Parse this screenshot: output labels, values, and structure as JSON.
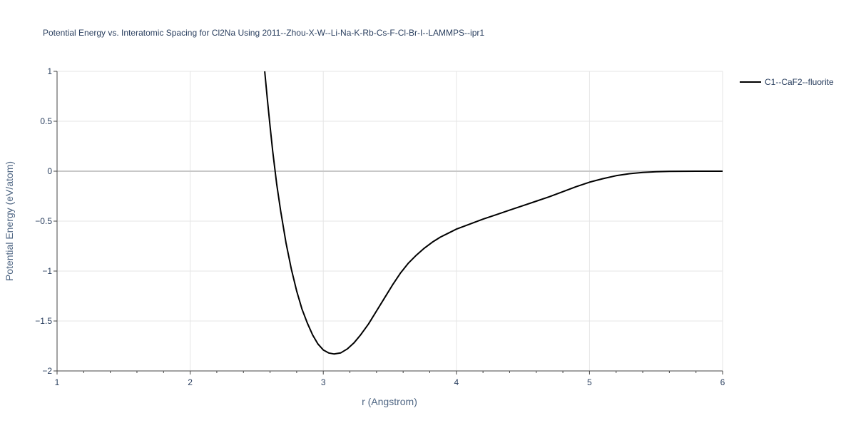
{
  "chart_data": {
    "type": "line",
    "title": "Potential Energy vs. Interatomic Spacing for Cl2Na Using 2011--Zhou-X-W--Li-Na-K-Rb-Cs-F-Cl-Br-I--LAMMPS--ipr1",
    "xlabel": "r (Angstrom)",
    "ylabel": "Potential Energy (eV/atom)",
    "xlim": [
      1,
      6
    ],
    "ylim": [
      -2,
      1
    ],
    "x_ticks": [
      1,
      2,
      3,
      4,
      5,
      6
    ],
    "y_ticks": [
      -2,
      -1.5,
      -1,
      -0.5,
      0,
      0.5,
      1
    ],
    "x_tick_labels": [
      "1",
      "2",
      "3",
      "4",
      "5",
      "6"
    ],
    "y_tick_labels": [
      "−2",
      "−1.5",
      "−1",
      "−0.5",
      "0",
      "0.5",
      "1"
    ],
    "grid": true,
    "legend_position": "top-right",
    "series": [
      {
        "name": "C1--CaF2--fluorite",
        "color": "#000000",
        "x": [
          2.56,
          2.58,
          2.6,
          2.62,
          2.65,
          2.68,
          2.72,
          2.76,
          2.8,
          2.84,
          2.88,
          2.92,
          2.96,
          3.0,
          3.04,
          3.08,
          3.13,
          3.18,
          3.23,
          3.28,
          3.34,
          3.4,
          3.46,
          3.52,
          3.58,
          3.64,
          3.7,
          3.76,
          3.82,
          3.88,
          3.94,
          4.0,
          4.1,
          4.2,
          4.3,
          4.4,
          4.5,
          4.6,
          4.7,
          4.8,
          4.9,
          5.0,
          5.1,
          5.2,
          5.3,
          5.4,
          5.5,
          5.6,
          5.7,
          5.8,
          5.9,
          6.0
        ],
        "y": [
          1.0,
          0.72,
          0.45,
          0.2,
          -0.13,
          -0.4,
          -0.72,
          -0.98,
          -1.2,
          -1.38,
          -1.52,
          -1.64,
          -1.73,
          -1.79,
          -1.82,
          -1.83,
          -1.82,
          -1.78,
          -1.72,
          -1.64,
          -1.53,
          -1.4,
          -1.27,
          -1.14,
          -1.02,
          -0.92,
          -0.84,
          -0.77,
          -0.71,
          -0.66,
          -0.62,
          -0.58,
          -0.53,
          -0.48,
          -0.435,
          -0.39,
          -0.345,
          -0.3,
          -0.255,
          -0.205,
          -0.155,
          -0.11,
          -0.075,
          -0.045,
          -0.025,
          -0.012,
          -0.005,
          -0.002,
          -0.001,
          0.0,
          0.0,
          0.0
        ]
      }
    ]
  }
}
